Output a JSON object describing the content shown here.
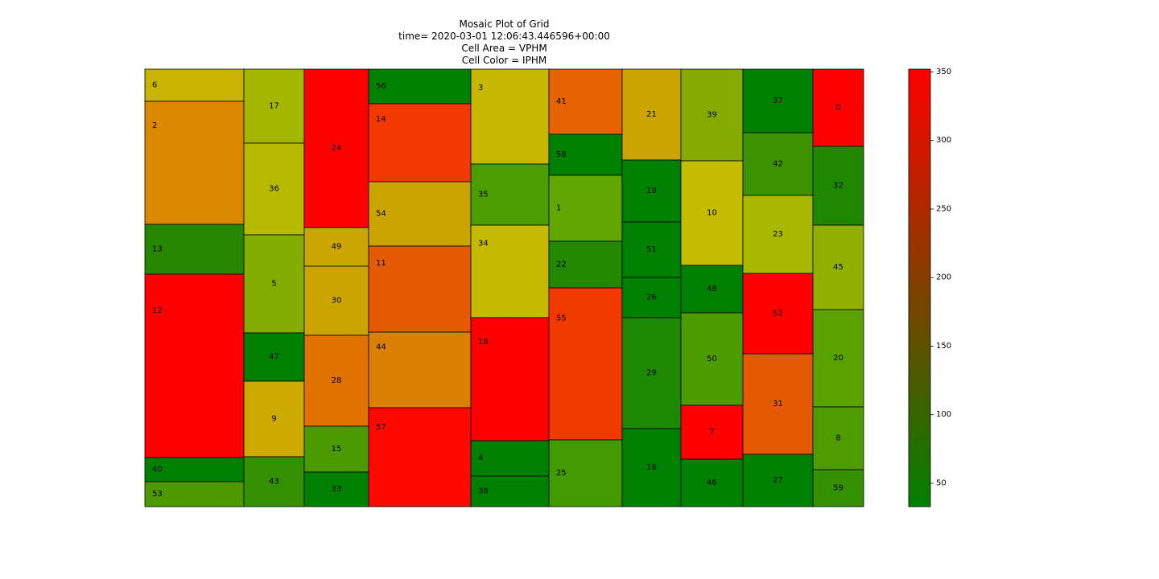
{
  "chart_data": {
    "type": "heatmap",
    "subtype": "mosaic",
    "title_lines": [
      "Mosaic Plot of Grid",
      "time= 2020-03-01 12:06:43.446596+00:00",
      "Cell Area = VPHM",
      "Cell Color = IPHM"
    ],
    "colorbar": {
      "min": 33,
      "max": 352,
      "ticks": [
        50,
        100,
        150,
        200,
        250,
        300,
        350
      ],
      "colors": [
        "#008000",
        "#ff0000"
      ]
    },
    "columns": [
      {
        "width": 123,
        "cells": [
          {
            "label": "6",
            "size": 40,
            "color": "#c8b400"
          },
          {
            "label": "2",
            "size": 153,
            "color": "#d98800"
          },
          {
            "label": "13",
            "size": 62,
            "color": "#278600"
          },
          {
            "label": "12",
            "size": 228,
            "color": "#ff0000"
          },
          {
            "label": "40",
            "size": 30,
            "color": "#008000"
          },
          {
            "label": "53",
            "size": 31,
            "color": "#4c9a00"
          }
        ]
      },
      {
        "width": 75,
        "cells": [
          {
            "label": "17",
            "size": 92,
            "color": "#a3b600"
          },
          {
            "label": "36",
            "size": 114,
            "color": "#b7ba00"
          },
          {
            "label": "5",
            "size": 122,
            "color": "#83ac00"
          },
          {
            "label": "47",
            "size": 60,
            "color": "#008000"
          },
          {
            "label": "9",
            "size": 94,
            "color": "#ccaa00"
          },
          {
            "label": "43",
            "size": 62,
            "color": "#339000"
          }
        ]
      },
      {
        "width": 80,
        "cells": [
          {
            "label": "24",
            "size": 197,
            "color": "#ff0000"
          },
          {
            "label": "49",
            "size": 48,
            "color": "#cca600"
          },
          {
            "label": "30",
            "size": 86,
            "color": "#cca400"
          },
          {
            "label": "28",
            "size": 113,
            "color": "#e27200"
          },
          {
            "label": "15",
            "size": 57,
            "color": "#4a9a00"
          },
          {
            "label": "33",
            "size": 43,
            "color": "#008000"
          }
        ]
      },
      {
        "width": 127,
        "cells": [
          {
            "label": "56",
            "size": 43,
            "color": "#008000"
          },
          {
            "label": "14",
            "size": 97,
            "color": "#f23800"
          },
          {
            "label": "54",
            "size": 80,
            "color": "#cca400"
          },
          {
            "label": "11",
            "size": 107,
            "color": "#e55a00"
          },
          {
            "label": "44",
            "size": 94,
            "color": "#d98000"
          },
          {
            "label": "57",
            "size": 123,
            "color": "#ff0800"
          }
        ]
      },
      {
        "width": 97,
        "cells": [
          {
            "label": "3",
            "size": 118,
            "color": "#c6b800"
          },
          {
            "label": "35",
            "size": 76,
            "color": "#4a9e00"
          },
          {
            "label": "34",
            "size": 115,
            "color": "#c6ba00"
          },
          {
            "label": "18",
            "size": 153,
            "color": "#ff0000"
          },
          {
            "label": "4",
            "size": 44,
            "color": "#008000"
          },
          {
            "label": "38",
            "size": 38,
            "color": "#008000"
          }
        ]
      },
      {
        "width": 91,
        "cells": [
          {
            "label": "41",
            "size": 81,
            "color": "#e56400"
          },
          {
            "label": "58",
            "size": 51,
            "color": "#008000"
          },
          {
            "label": "1",
            "size": 82,
            "color": "#62a600"
          },
          {
            "label": "22",
            "size": 58,
            "color": "#228800"
          },
          {
            "label": "55",
            "size": 189,
            "color": "#f23a00"
          },
          {
            "label": "25",
            "size": 83,
            "color": "#439a00"
          }
        ]
      },
      {
        "width": 73,
        "cells": [
          {
            "label": "21",
            "size": 113,
            "color": "#cca400"
          },
          {
            "label": "19",
            "size": 77,
            "color": "#008000"
          },
          {
            "label": "51",
            "size": 69,
            "color": "#008000"
          },
          {
            "label": "26",
            "size": 50,
            "color": "#008000"
          },
          {
            "label": "29",
            "size": 138,
            "color": "#1e8800"
          },
          {
            "label": "16",
            "size": 97,
            "color": "#008000"
          }
        ]
      },
      {
        "width": 77,
        "cells": [
          {
            "label": "39",
            "size": 114,
            "color": "#84ac00"
          },
          {
            "label": "10",
            "size": 130,
            "color": "#c4bc00"
          },
          {
            "label": "48",
            "size": 59,
            "color": "#008000"
          },
          {
            "label": "50",
            "size": 115,
            "color": "#4b9c00"
          },
          {
            "label": "7",
            "size": 67,
            "color": "#ff0000"
          },
          {
            "label": "46",
            "size": 59,
            "color": "#008000"
          }
        ]
      },
      {
        "width": 87,
        "cells": [
          {
            "label": "37",
            "size": 79,
            "color": "#008000"
          },
          {
            "label": "42",
            "size": 78,
            "color": "#3c9200"
          },
          {
            "label": "23",
            "size": 97,
            "color": "#a8b800"
          },
          {
            "label": "52",
            "size": 100,
            "color": "#ff0000"
          },
          {
            "label": "31",
            "size": 125,
            "color": "#e55a00"
          },
          {
            "label": "27",
            "size": 65,
            "color": "#008000"
          }
        ]
      },
      {
        "width": 63,
        "cells": [
          {
            "label": "0",
            "size": 96,
            "color": "#ff0000"
          },
          {
            "label": "32",
            "size": 98,
            "color": "#208800"
          },
          {
            "label": "45",
            "size": 105,
            "color": "#90b000"
          },
          {
            "label": "20",
            "size": 121,
            "color": "#5aa200"
          },
          {
            "label": "8",
            "size": 78,
            "color": "#4e9c00"
          },
          {
            "label": "59",
            "size": 46,
            "color": "#339000"
          }
        ]
      }
    ]
  }
}
